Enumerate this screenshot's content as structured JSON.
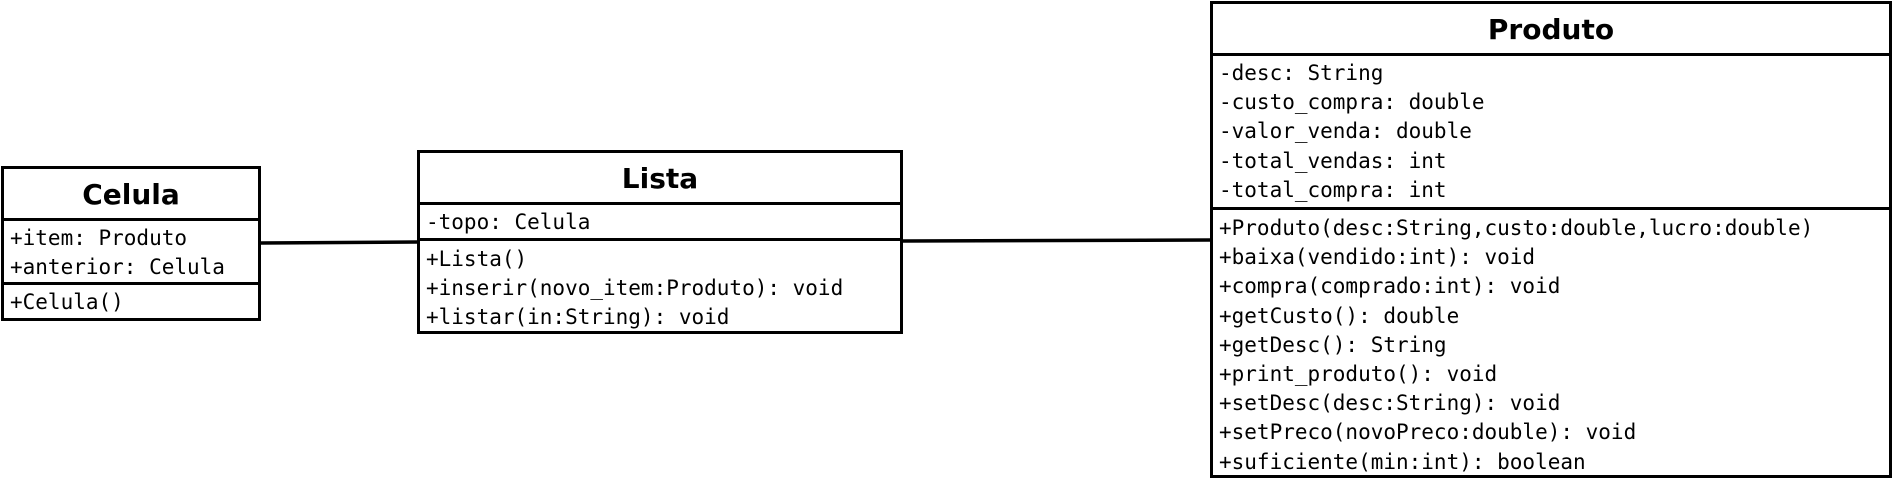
{
  "classes": {
    "celula": {
      "name": "Celula",
      "attributes": [
        "+item: Produto",
        "+anterior: Celula"
      ],
      "operations": [
        "+Celula()"
      ]
    },
    "lista": {
      "name": "Lista",
      "attributes": [
        "-topo: Celula"
      ],
      "operations": [
        "+Lista()",
        "+inserir(novo_item:Produto): void",
        "+listar(in:String): void"
      ]
    },
    "produto": {
      "name": "Produto",
      "attributes": [
        "-desc: String",
        "-custo_compra: double",
        "-valor_venda: double",
        "-total_vendas: int",
        "-total_compra: int"
      ],
      "operations": [
        "+Produto(desc:String,custo:double,lucro:double)",
        "+baixa(vendido:int): void",
        "+compra(comprado:int): void",
        "+getCusto(): double",
        "+getDesc(): String",
        "+print_produto(): void",
        "+setDesc(desc:String): void",
        "+setPreco(novoPreco:double): void",
        "+suficiente(min:int): boolean"
      ]
    }
  },
  "associations": [
    {
      "from": "Celula",
      "to": "Lista"
    },
    {
      "from": "Lista",
      "to": "Produto"
    }
  ],
  "colors": {
    "line": "#000000",
    "background": "#ffffff"
  }
}
